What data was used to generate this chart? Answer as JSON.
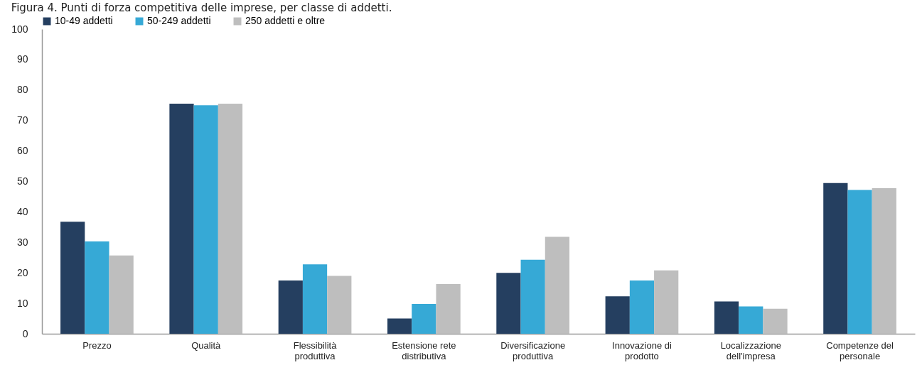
{
  "chart_data": {
    "type": "bar",
    "title": "Figura 4. Punti di forza competitiva delle imprese, per classe di addetti.",
    "categories": [
      "Prezzo",
      "Qualità",
      "Flessibilità produttiva",
      "Estensione rete distributiva",
      "Diversificazione produttiva",
      "Innovazione di prodotto",
      "Localizzazione dell'impresa",
      "Competenze del personale"
    ],
    "series": [
      {
        "name": "10-49 addetti",
        "color": "#253f60",
        "values": [
          36.8,
          75.5,
          17.5,
          5.0,
          20.0,
          12.3,
          10.6,
          49.5
        ]
      },
      {
        "name": "50-249 addetti",
        "color": "#36a9d6",
        "values": [
          30.3,
          75.0,
          22.8,
          9.8,
          24.3,
          17.5,
          9.0,
          47.2
        ]
      },
      {
        "name": "250 addetti e oltre",
        "color": "#bebebe",
        "values": [
          25.7,
          75.5,
          19.0,
          16.3,
          31.8,
          20.8,
          8.2,
          47.8
        ]
      }
    ],
    "ylim": [
      0,
      100
    ],
    "yticks": [
      0,
      10,
      20,
      30,
      40,
      50,
      60,
      70,
      80,
      90,
      100
    ],
    "grid": false,
    "legend": "top"
  }
}
